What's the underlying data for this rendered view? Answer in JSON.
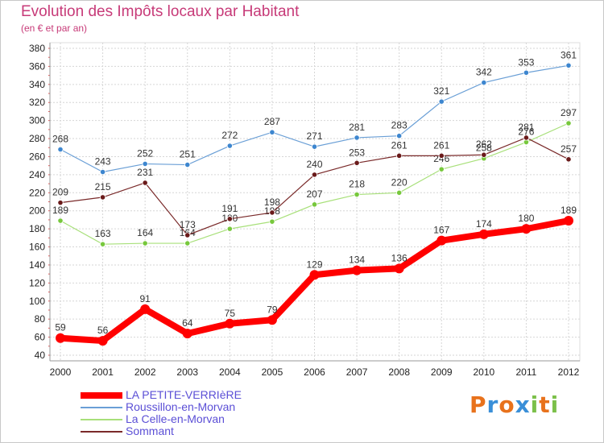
{
  "title": "Evolution des Impôts locaux par Habitant",
  "subtitle": "(en € et par an)",
  "logo": {
    "letters": [
      "P",
      "r",
      "o",
      "x",
      "i",
      "t",
      "i"
    ],
    "colors": [
      "#e8721c",
      "#3a8fd8",
      "#e8721c",
      "#3a8fd8",
      "#7cc04a",
      "#e8721c",
      "#7cc04a"
    ]
  },
  "chart_data": {
    "type": "line",
    "title": "Evolution des Impôts locaux par Habitant",
    "subtitle": "(en € et par an)",
    "x": [
      "2000",
      "2001",
      "2002",
      "2003",
      "2004",
      "2005",
      "2006",
      "2007",
      "2008",
      "2009",
      "2010",
      "2011",
      "2012"
    ],
    "ylim": [
      40,
      380
    ],
    "yticks": [
      40,
      60,
      80,
      100,
      120,
      140,
      160,
      180,
      200,
      220,
      240,
      260,
      280,
      300,
      320,
      340,
      360,
      380
    ],
    "grid": true,
    "legend_position": "bottom-left",
    "series": [
      {
        "name": "Roussillon-en-Morvan",
        "color": "#6a9fd6",
        "marker": "#3d86cf",
        "width": 1,
        "values": [
          268,
          243,
          252,
          251,
          272,
          287,
          271,
          281,
          283,
          321,
          342,
          353,
          361
        ]
      },
      {
        "name": "La Celle-en-Morvan",
        "color": "#a8e07a",
        "marker": "#77c83c",
        "width": 1,
        "values": [
          189,
          163,
          164,
          164,
          180,
          188,
          207,
          218,
          220,
          246,
          258,
          276,
          297
        ]
      },
      {
        "name": "Sommant",
        "color": "#7a2a2a",
        "marker": "#6a1a1a",
        "width": 1,
        "values": [
          209,
          215,
          231,
          173,
          191,
          198,
          240,
          253,
          261,
          261,
          262,
          281,
          257
        ]
      },
      {
        "name": "LA PETITE-VERRIèRE",
        "color": "#ff0000",
        "marker": "#ff0000",
        "width": 8,
        "values": [
          59,
          56,
          91,
          64,
          75,
          79,
          129,
          134,
          136,
          167,
          174,
          180,
          189
        ]
      }
    ],
    "legend_order": [
      "LA PETITE-VERRIèRE",
      "Roussillon-en-Morvan",
      "La Celle-en-Morvan",
      "Sommant"
    ]
  }
}
